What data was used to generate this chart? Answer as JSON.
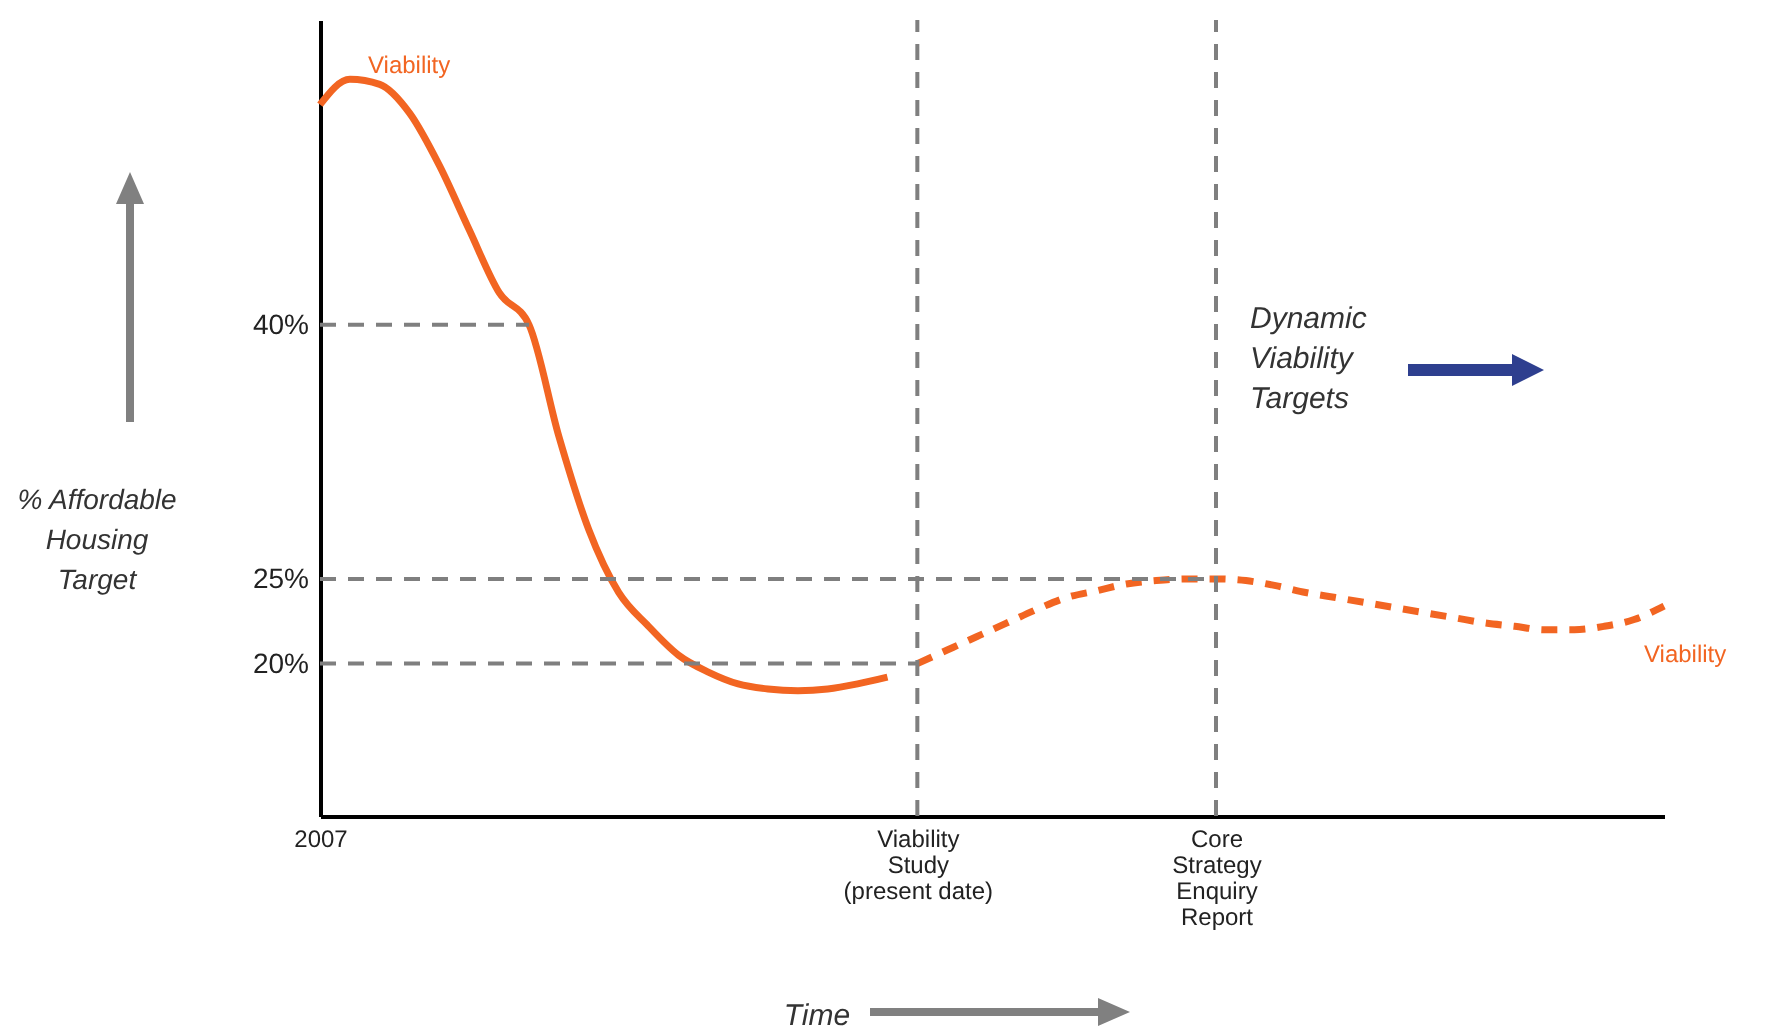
{
  "chart_data": {
    "type": "line",
    "ylabel": "% Affordable\nHousing\nTarget",
    "xlabel": "Time",
    "categories": [
      "2007",
      null,
      null,
      null,
      null,
      null,
      null,
      null,
      null,
      null,
      null,
      null,
      null,
      null,
      null,
      null,
      null,
      null,
      null,
      null,
      "Viability\nStudy\n(present date)",
      null,
      null,
      null,
      null,
      null,
      null,
      null,
      null,
      null,
      "Core\nStrategy\nEnquiry\nReport",
      null,
      null,
      null,
      null,
      null,
      null,
      null,
      null,
      null,
      null,
      null,
      null,
      null,
      null,
      null
    ],
    "ylim": [
      11,
      58
    ],
    "yticks": [
      {
        "value": 20,
        "label": "20%"
      },
      {
        "value": 25,
        "label": "25%"
      },
      {
        "value": 40,
        "label": "40%"
      }
    ],
    "series": [
      {
        "name": "Viability",
        "color": "#f26522",
        "line_style": "solid",
        "values": [
          53.0,
          54.5,
          54.2,
          52.5,
          49.4,
          45.6,
          41.9,
          40.0,
          33.4,
          27.9,
          24.2,
          22.2,
          20.5,
          19.5,
          18.8,
          18.5,
          18.4,
          18.5,
          18.8,
          19.2,
          null,
          null,
          null,
          null,
          null,
          null,
          null,
          null,
          null,
          null,
          null,
          null,
          null,
          null,
          null,
          null,
          null,
          null,
          null,
          null,
          null,
          null,
          null,
          null,
          null,
          null
        ]
      },
      {
        "name": "Viability",
        "color": "#f26522",
        "line_style": "dashed",
        "values": [
          null,
          null,
          null,
          null,
          null,
          null,
          null,
          null,
          null,
          null,
          null,
          null,
          null,
          null,
          null,
          null,
          null,
          null,
          null,
          null,
          20.0,
          20.8,
          21.6,
          22.4,
          23.2,
          23.9,
          24.3,
          24.7,
          24.9,
          25.0,
          25.0,
          24.9,
          24.6,
          24.2,
          23.9,
          23.6,
          23.3,
          23.0,
          22.7,
          22.4,
          22.2,
          22.0,
          22.0,
          22.2,
          22.6,
          23.4
        ]
      }
    ],
    "ref_lines": [
      {
        "axis": "y",
        "value": 40,
        "color": "#7f7f7f",
        "line_style": "dashed"
      },
      {
        "axis": "y",
        "value": 25,
        "color": "#7f7f7f",
        "line_style": "dashed"
      },
      {
        "axis": "y",
        "value": 20,
        "color": "#7f7f7f",
        "line_style": "dashed"
      },
      {
        "axis": "x",
        "value": "Viability\nStudy\n(present date)",
        "color": "#7f7f7f",
        "line_style": "dashed"
      },
      {
        "axis": "x",
        "value": "Core\nStrategy\nEnquiry\nReport",
        "color": "#7f7f7f",
        "line_style": "dashed"
      }
    ],
    "annotations": [
      "Dynamic\nViability\nTargets"
    ],
    "grid": false
  }
}
